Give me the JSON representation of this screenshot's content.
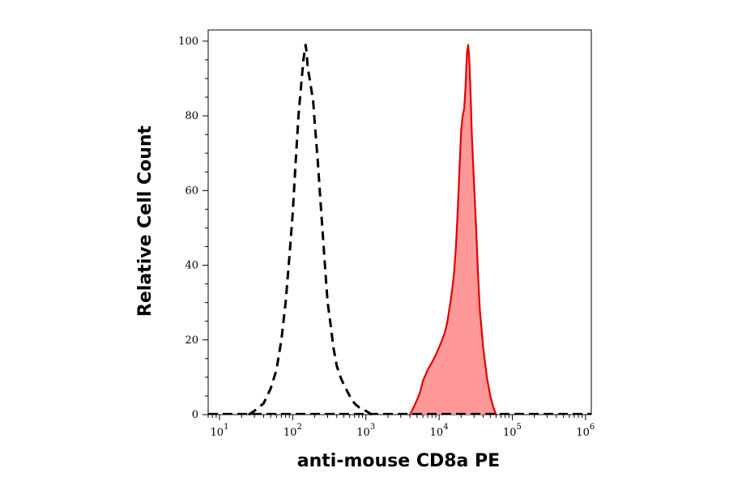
{
  "chart_data": {
    "type": "area",
    "xlabel": "anti-mouse CD8a PE",
    "ylabel": "Relative Cell Count",
    "x_scale": "log",
    "xlim": [
      7,
      1200000
    ],
    "ylim": [
      0,
      103
    ],
    "x_ticks": [
      {
        "value": 10,
        "base": "10",
        "exp": "1"
      },
      {
        "value": 100,
        "base": "10",
        "exp": "2"
      },
      {
        "value": 1000,
        "base": "10",
        "exp": "3"
      },
      {
        "value": 10000,
        "base": "10",
        "exp": "4"
      },
      {
        "value": 100000,
        "base": "10",
        "exp": "5"
      },
      {
        "value": 1000000,
        "base": "10",
        "exp": "6"
      }
    ],
    "y_ticks": [
      "0",
      "20",
      "40",
      "60",
      "80",
      "100"
    ],
    "grid": false,
    "legend": "none",
    "series": [
      {
        "style": "dashed",
        "color": "#000000",
        "filled": false,
        "x": [
          25,
          30,
          40,
          50,
          60,
          70,
          80,
          90,
          100,
          110,
          120,
          130,
          140,
          150,
          155,
          160,
          170,
          180,
          190,
          200,
          220,
          240,
          260,
          280,
          300,
          330,
          360,
          400,
          450,
          500,
          600,
          700,
          800,
          1000,
          1200
        ],
        "y": [
          0,
          1,
          3,
          7,
          12,
          20,
          30,
          42,
          54,
          68,
          80,
          88,
          95,
          99,
          97,
          93,
          90,
          87,
          84,
          78,
          68,
          57,
          47,
          38,
          30,
          24,
          18,
          13,
          10,
          8,
          5,
          3,
          2,
          1,
          0
        ]
      },
      {
        "style": "solid",
        "color": "#e00000",
        "fill": "#ff9999",
        "filled": true,
        "x": [
          4000,
          4500,
          5000,
          5500,
          6000,
          7000,
          8000,
          9000,
          10000,
          11000,
          12000,
          13000,
          14000,
          15000,
          16000,
          17000,
          18000,
          19000,
          20000,
          21000,
          22000,
          23000,
          24000,
          25000,
          26000,
          27000,
          28000,
          30000,
          32000,
          34000,
          36000,
          40000,
          45000,
          50000,
          55000,
          60000
        ],
        "y": [
          0,
          2,
          4,
          6,
          9,
          12,
          14,
          16,
          18,
          20,
          22,
          25,
          29,
          33,
          38,
          45,
          55,
          66,
          76,
          80,
          82,
          88,
          97,
          99,
          94,
          85,
          75,
          62,
          50,
          38,
          28,
          18,
          10,
          5,
          2,
          0
        ]
      }
    ]
  }
}
